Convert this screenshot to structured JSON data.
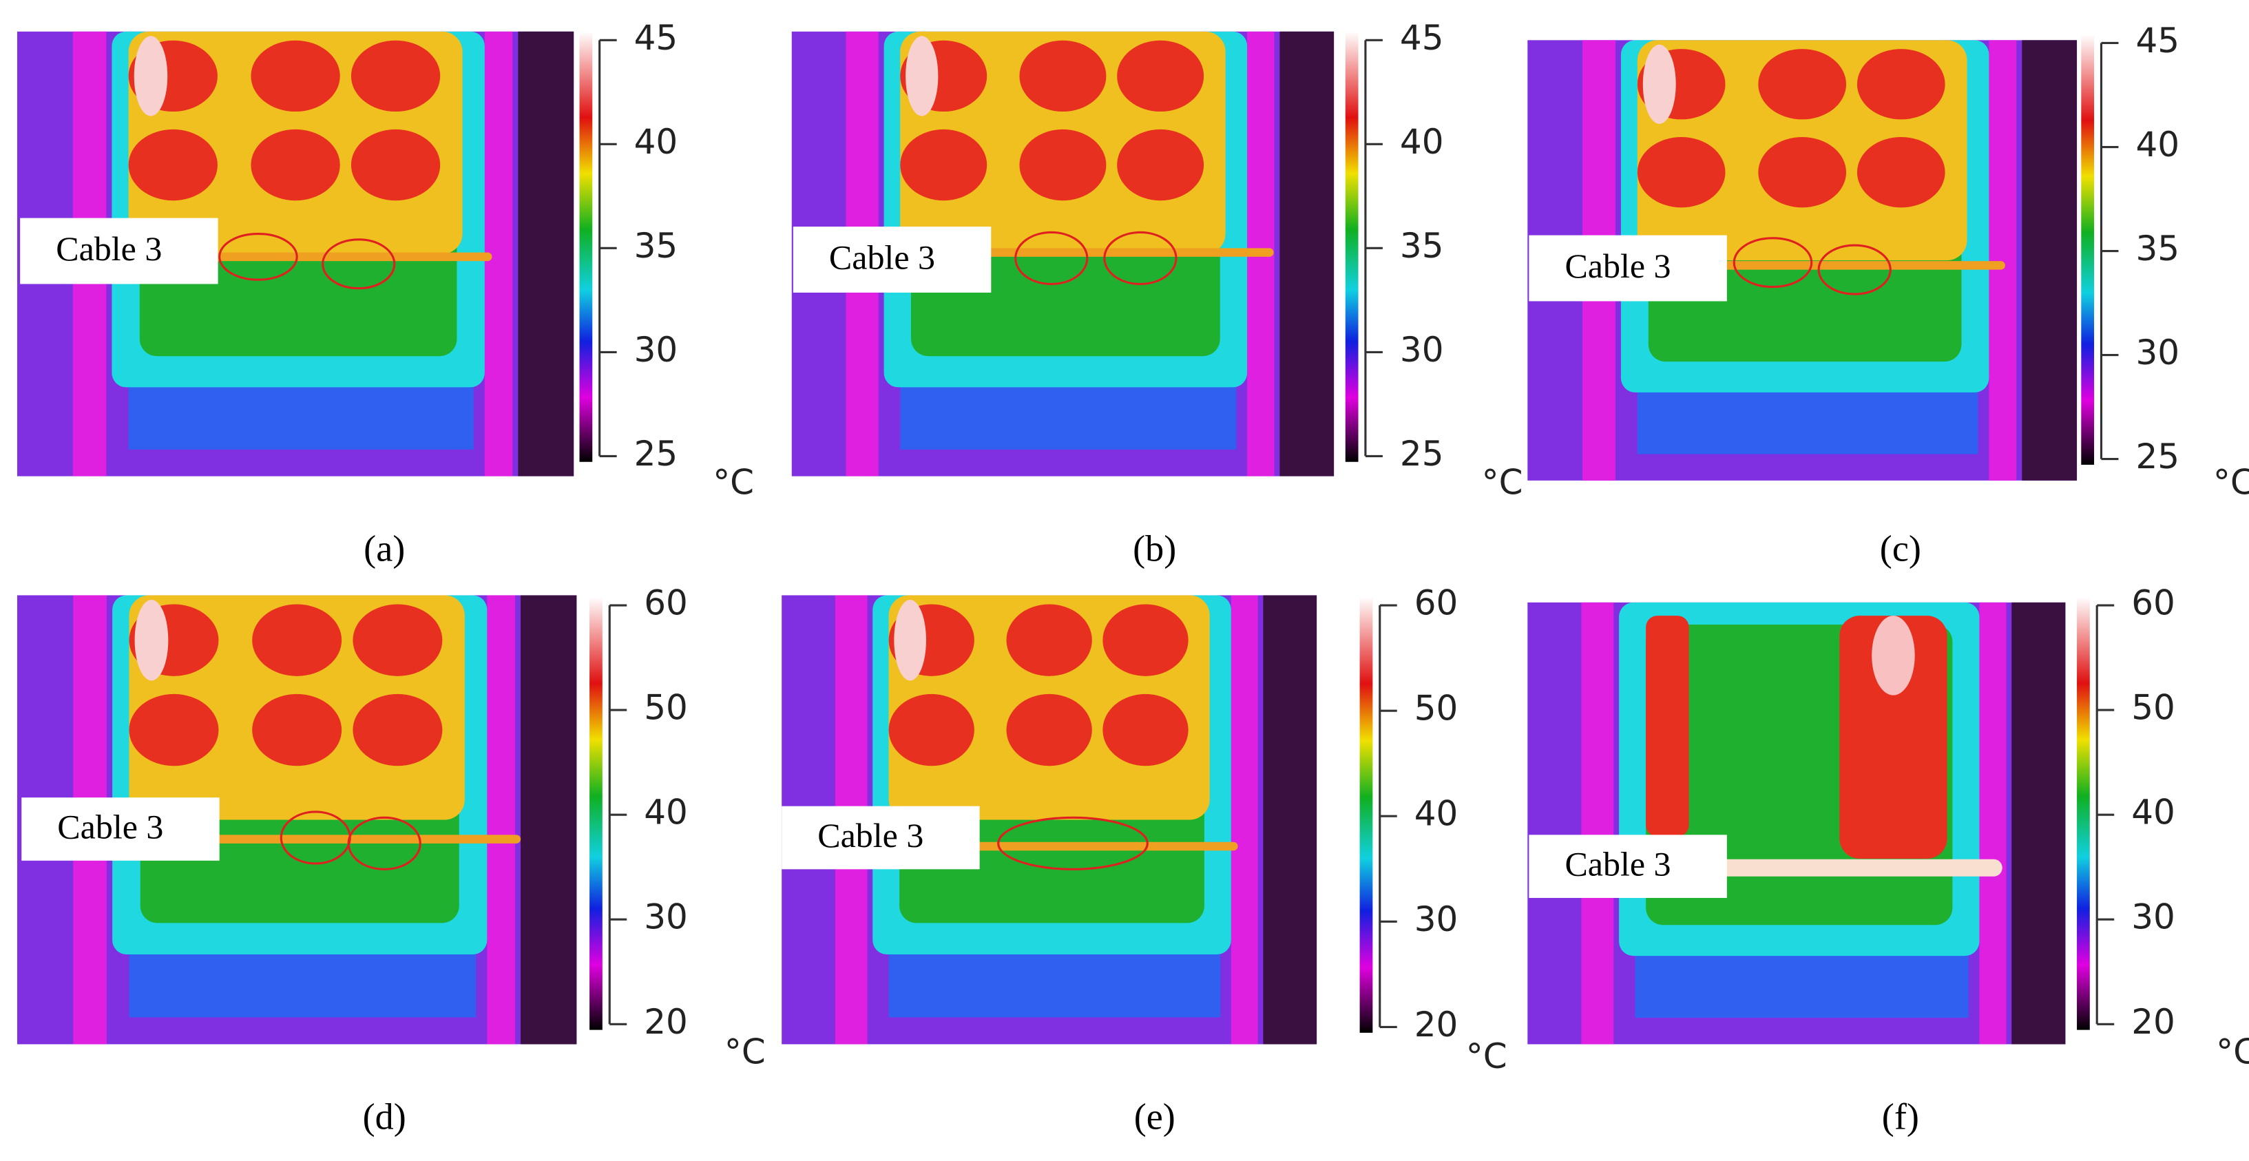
{
  "panels": [
    {
      "label": "(a)",
      "annotation": "Cable 3",
      "colorbar": {
        "ticks": [
          45,
          40,
          35,
          30,
          25
        ],
        "unit": "°C"
      }
    },
    {
      "label": "(b)",
      "annotation": "Cable 3",
      "colorbar": {
        "ticks": [
          45,
          40,
          35,
          30,
          25
        ],
        "unit": "°C"
      }
    },
    {
      "label": "(c)",
      "annotation": "Cable 3",
      "colorbar": {
        "ticks": [
          45,
          40,
          35,
          30,
          25
        ],
        "unit": "°C"
      }
    },
    {
      "label": "(d)",
      "annotation": "Cable 3",
      "colorbar": {
        "ticks": [
          60,
          50,
          40,
          30,
          20
        ],
        "unit": "°C"
      }
    },
    {
      "label": "(e)",
      "annotation": "Cable 3",
      "colorbar": {
        "ticks": [
          60,
          50,
          40,
          30,
          20
        ],
        "unit": "°C"
      }
    },
    {
      "label": "(f)",
      "annotation": "Cable 3",
      "colorbar": {
        "ticks": [
          60,
          50,
          40,
          30,
          20
        ],
        "unit": "°C"
      }
    }
  ]
}
